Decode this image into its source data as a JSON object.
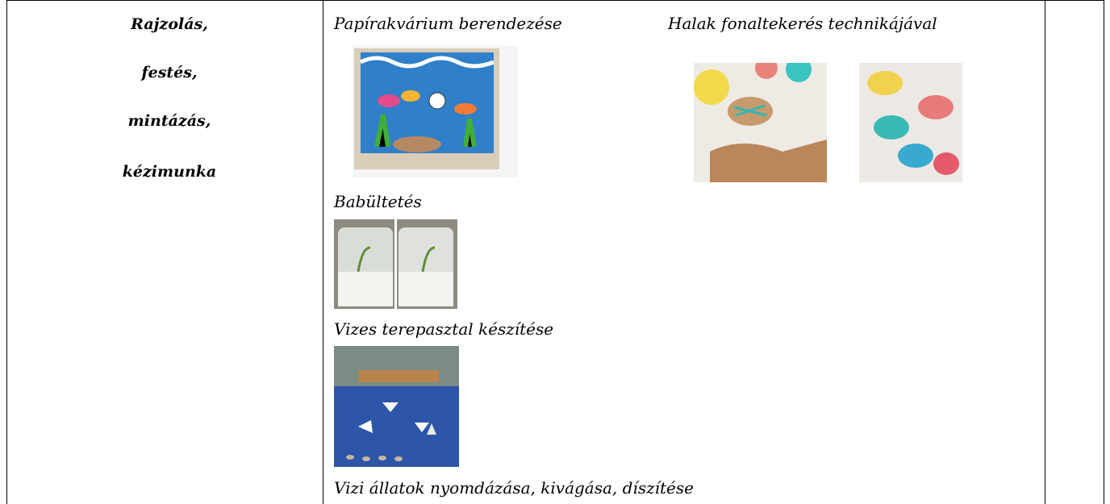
{
  "left_cell": {
    "lines": [
      "Rajzolás,",
      "festés,",
      "mintázás,",
      "kézimunka"
    ]
  },
  "middle_cell": {
    "activities": [
      {
        "title": "Papírakvárium berendezése"
      },
      {
        "title": "Halak fonaltekerés technikájával"
      },
      {
        "title": "Babültetés"
      },
      {
        "title": "Vizes terepasztal készítése"
      },
      {
        "title": "Vizi állatok nyomdázása, kivágása, díszítése"
      }
    ]
  }
}
